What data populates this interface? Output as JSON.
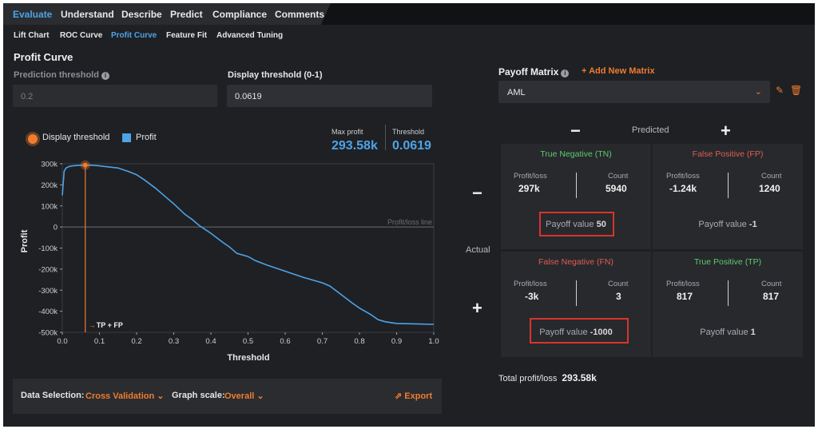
{
  "nav": {
    "tabs": [
      "Evaluate",
      "Understand",
      "Describe",
      "Predict",
      "Compliance",
      "Comments"
    ],
    "active_tab": "Evaluate",
    "subtabs": [
      "Lift Chart",
      "ROC Curve",
      "Profit Curve",
      "Feature Fit",
      "Advanced Tuning"
    ],
    "active_subtab": "Profit Curve"
  },
  "profit_curve": {
    "title": "Profit Curve",
    "prediction_threshold_label": "Prediction threshold",
    "prediction_threshold_value": "0.2",
    "display_threshold_label": "Display threshold (0-1)",
    "display_threshold_value": "0.0619",
    "legend_threshold": "Display threshold",
    "legend_profit": "Profit",
    "max_profit_label": "Max profit",
    "max_profit_value": "293.58k",
    "threshold_label": "Threshold",
    "threshold_value": "0.0619"
  },
  "chart_data": {
    "type": "line",
    "xlabel": "Threshold",
    "ylabel": "Profit",
    "xlim": [
      0,
      1
    ],
    "ylim": [
      -500000,
      300000
    ],
    "x_ticks": [
      "0.0",
      "0.1",
      "0.2",
      "0.3",
      "0.4",
      "0.5",
      "0.6",
      "0.7",
      "0.8",
      "0.9",
      "1.0"
    ],
    "y_ticks": [
      "300k",
      "200k",
      "100k",
      "0",
      "-100k",
      "-200k",
      "-300k",
      "-400k",
      "-500k"
    ],
    "reference_line": {
      "y": 0,
      "label": "Profit/loss line"
    },
    "threshold_marker": {
      "x": 0.0619,
      "y": 293580,
      "label": "TP + FP"
    },
    "series": [
      {
        "name": "Profit",
        "color": "#4ea3e6",
        "x": [
          0,
          0.005,
          0.01,
          0.02,
          0.03,
          0.05,
          0.0619,
          0.08,
          0.1,
          0.12,
          0.15,
          0.18,
          0.2,
          0.22,
          0.25,
          0.28,
          0.3,
          0.33,
          0.35,
          0.37,
          0.4,
          0.43,
          0.45,
          0.47,
          0.5,
          0.52,
          0.55,
          0.6,
          0.65,
          0.7,
          0.72,
          0.75,
          0.78,
          0.8,
          0.83,
          0.85,
          0.87,
          0.9,
          0.95,
          1.0
        ],
        "y": [
          150000,
          265000,
          280000,
          288000,
          291000,
          293000,
          293580,
          293000,
          290000,
          286000,
          280000,
          262000,
          248000,
          225000,
          185000,
          140000,
          110000,
          60000,
          35000,
          5000,
          -30000,
          -70000,
          -95000,
          -125000,
          -140000,
          -160000,
          -180000,
          -210000,
          -240000,
          -265000,
          -280000,
          -320000,
          -360000,
          -385000,
          -415000,
          -440000,
          -450000,
          -458000,
          -460000,
          -462000
        ]
      }
    ]
  },
  "bottom": {
    "data_selection_label": "Data Selection:",
    "data_selection_value": "Cross Validation",
    "graph_scale_label": "Graph scale:",
    "graph_scale_value": "Overall",
    "export_label": "Export"
  },
  "payoff": {
    "title": "Payoff Matrix",
    "add_label": "Add New Matrix",
    "selected_matrix": "AML",
    "predicted_label": "Predicted",
    "actual_label": "Actual",
    "minus": "−",
    "plus": "+",
    "profit_loss_label": "Profit/loss",
    "count_label": "Count",
    "payoff_value_label": "Payoff value",
    "cells": {
      "tn": {
        "name": "True Negative (TN)",
        "profit": "297k",
        "count": "5940",
        "payoff": "50"
      },
      "fp": {
        "name": "False Positive (FP)",
        "profit": "-1.24k",
        "count": "1240",
        "payoff": "-1"
      },
      "fn": {
        "name": "False Negative (FN)",
        "profit": "-3k",
        "count": "3",
        "payoff": "-1000"
      },
      "tp": {
        "name": "True Positive (TP)",
        "profit": "817",
        "count": "817",
        "payoff": "1"
      }
    },
    "total_label": "Total profit/loss",
    "total_value": "293.58k"
  },
  "colors": {
    "accent": "#4ea3e6",
    "orange": "#f07c2f",
    "green": "#5ecb6f",
    "red": "#e25c52",
    "highlight": "#d9342b"
  }
}
